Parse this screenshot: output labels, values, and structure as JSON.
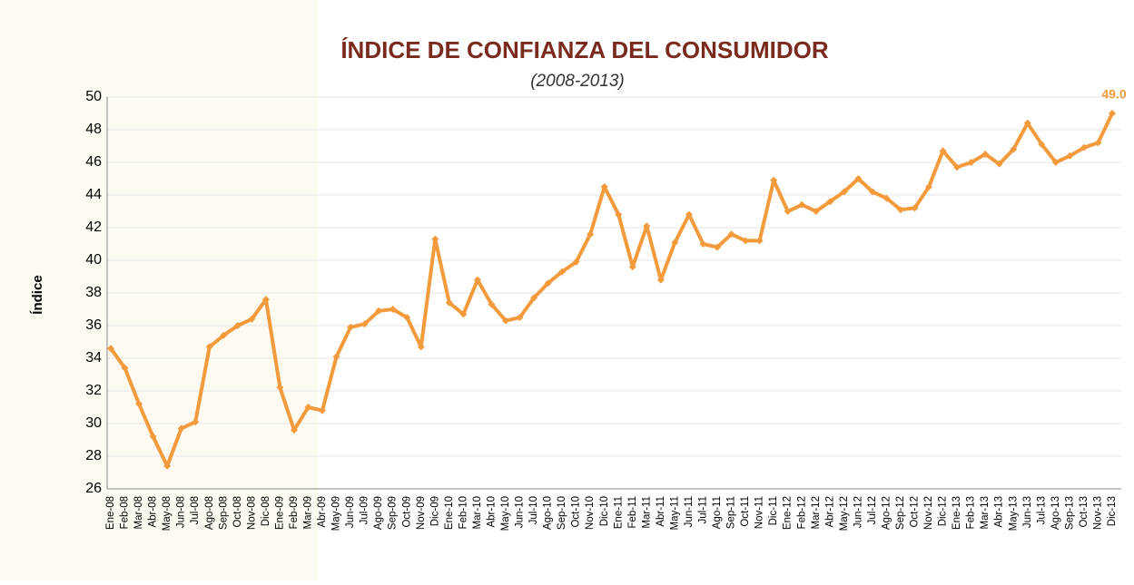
{
  "chart_data": {
    "type": "line",
    "title": "ÍNDICE DE CONFIANZA DEL CONSUMIDOR",
    "subtitle": "(2008-2013)",
    "y_label": "Índice",
    "categories": [
      "Ene-08",
      "Feb-08",
      "Mar-08",
      "Abr-08",
      "May-08",
      "Jun-08",
      "Jul-08",
      "Ago-08",
      "Sep-08",
      "Oct-08",
      "Nov-08",
      "Dic-08",
      "Ene-09",
      "Feb-09",
      "Mar-09",
      "Abr-09",
      "May-09",
      "Jun-09",
      "Jul-09",
      "Ago-09",
      "Sep-09",
      "Oct-09",
      "Nov-09",
      "Dic-09",
      "Ene-10",
      "Feb-10",
      "Mar-10",
      "Abr-10",
      "May-10",
      "Jun-10",
      "Jul-10",
      "Ago-10",
      "Sep-10",
      "Oct-10",
      "Nov-10",
      "Dic-10",
      "Ene-11",
      "Feb-11",
      "Mar-11",
      "Abr-11",
      "May-11",
      "Jun-11",
      "Jul-11",
      "Ago-11",
      "Sep-11",
      "Oct-11",
      "Nov-11",
      "Dic-11",
      "Ene-12",
      "Feb-12",
      "Mar-12",
      "Abr-12",
      "May-12",
      "Jun-12",
      "Jul-12",
      "Ago-12",
      "Sep-12",
      "Oct-12",
      "Nov-12",
      "Dic-12",
      "Ene-13",
      "Feb-13",
      "Mar-13",
      "Abr-13",
      "May-13",
      "Jun-13",
      "Jul-13",
      "Ago-13",
      "Sep-13",
      "Oct-13",
      "Nov-13",
      "Dic-13"
    ],
    "values": [
      34.6,
      33.4,
      31.2,
      29.2,
      27.4,
      29.7,
      30.1,
      34.7,
      35.4,
      36.0,
      36.4,
      37.6,
      32.2,
      29.6,
      31.0,
      30.8,
      34.1,
      35.9,
      36.1,
      36.9,
      37.0,
      36.5,
      34.7,
      41.3,
      37.4,
      36.7,
      38.8,
      37.3,
      36.3,
      36.5,
      37.7,
      38.6,
      39.3,
      39.9,
      41.6,
      44.5,
      42.8,
      39.6,
      42.1,
      38.8,
      41.1,
      42.8,
      41.0,
      40.8,
      41.6,
      41.2,
      41.2,
      44.9,
      43.0,
      43.4,
      43.0,
      43.6,
      44.2,
      45.0,
      44.2,
      43.8,
      43.1,
      43.2,
      44.5,
      46.7,
      45.7,
      46.0,
      46.5,
      45.9,
      46.8,
      48.4,
      47.1,
      46.0,
      46.4,
      46.9,
      47.2,
      49.0
    ],
    "value_labels": [
      null,
      null,
      null,
      null,
      null,
      null,
      null,
      null,
      null,
      null,
      null,
      null,
      null,
      null,
      null,
      null,
      null,
      null,
      null,
      null,
      null,
      null,
      null,
      null,
      null,
      null,
      null,
      null,
      null,
      null,
      null,
      null,
      null,
      null,
      null,
      null,
      null,
      null,
      null,
      null,
      null,
      null,
      null,
      null,
      null,
      null,
      null,
      null,
      null,
      null,
      null,
      null,
      null,
      null,
      null,
      null,
      null,
      null,
      null,
      null,
      null,
      null,
      null,
      null,
      null,
      null,
      null,
      null,
      null,
      null,
      null,
      "49.0"
    ],
    "color": "#f39a3c",
    "ylim": [
      26,
      50
    ],
    "yticks": [
      26,
      28,
      30,
      32,
      34,
      36,
      38,
      40,
      42,
      44,
      46,
      48,
      50
    ],
    "grid": true
  }
}
